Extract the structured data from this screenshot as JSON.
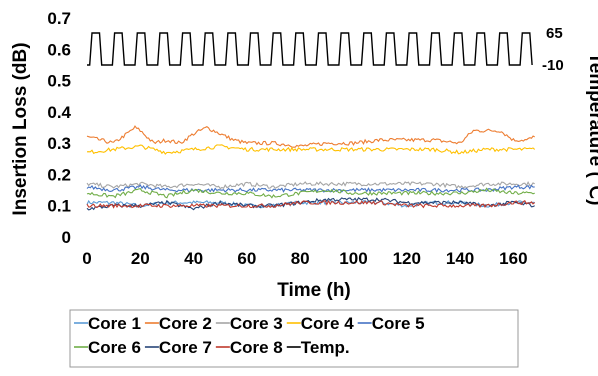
{
  "chart_data": {
    "type": "line",
    "title": "",
    "xlabel": "Time (h)",
    "ylabel": "Insertion Loss (dB)",
    "y2label": "Temperature (℃)",
    "xlim": [
      0,
      170
    ],
    "ylim": [
      0,
      0.7
    ],
    "xticks": [
      "0",
      "20",
      "40",
      "60",
      "80",
      "100",
      "120",
      "140",
      "160"
    ],
    "yticks": [
      "0",
      "0.1",
      "0.2",
      "0.3",
      "0.4",
      "0.5",
      "0.6",
      "0.7"
    ],
    "y2ticks": [
      "65",
      "-10"
    ],
    "grid": false,
    "legend_position": "bottom",
    "series": [
      {
        "name": "Core 1",
        "color": "#5b9bd5",
        "x": [
          0,
          10,
          20,
          30,
          40,
          50,
          60,
          70,
          80,
          90,
          100,
          110,
          120,
          130,
          140,
          150,
          160,
          168
        ],
        "values": [
          0.11,
          0.11,
          0.1,
          0.11,
          0.11,
          0.11,
          0.1,
          0.1,
          0.11,
          0.11,
          0.11,
          0.11,
          0.1,
          0.11,
          0.11,
          0.1,
          0.11,
          0.11
        ]
      },
      {
        "name": "Core 2",
        "color": "#ed7d31",
        "x": [
          0,
          5,
          10,
          15,
          18,
          20,
          25,
          30,
          35,
          40,
          45,
          50,
          55,
          60,
          70,
          80,
          90,
          100,
          110,
          120,
          130,
          140,
          145,
          150,
          155,
          160,
          165,
          168
        ],
        "values": [
          0.32,
          0.31,
          0.3,
          0.33,
          0.35,
          0.34,
          0.3,
          0.31,
          0.3,
          0.33,
          0.35,
          0.33,
          0.31,
          0.3,
          0.3,
          0.29,
          0.3,
          0.3,
          0.31,
          0.31,
          0.31,
          0.3,
          0.34,
          0.34,
          0.34,
          0.31,
          0.31,
          0.32
        ]
      },
      {
        "name": "Core 3",
        "color": "#a5a5a5",
        "x": [
          0,
          10,
          20,
          30,
          40,
          50,
          60,
          70,
          80,
          90,
          100,
          110,
          120,
          130,
          140,
          150,
          160,
          168
        ],
        "values": [
          0.17,
          0.16,
          0.17,
          0.16,
          0.17,
          0.16,
          0.17,
          0.16,
          0.17,
          0.17,
          0.17,
          0.17,
          0.17,
          0.17,
          0.16,
          0.17,
          0.17,
          0.17
        ]
      },
      {
        "name": "Core 4",
        "color": "#ffc000",
        "x": [
          0,
          10,
          20,
          30,
          40,
          50,
          60,
          70,
          80,
          90,
          100,
          110,
          120,
          130,
          140,
          150,
          160,
          168
        ],
        "values": [
          0.27,
          0.28,
          0.29,
          0.27,
          0.28,
          0.29,
          0.28,
          0.28,
          0.28,
          0.28,
          0.28,
          0.28,
          0.28,
          0.28,
          0.27,
          0.28,
          0.28,
          0.28
        ]
      },
      {
        "name": "Core 5",
        "color": "#4472c4",
        "x": [
          0,
          10,
          20,
          30,
          40,
          50,
          60,
          70,
          80,
          90,
          100,
          110,
          120,
          130,
          140,
          150,
          160,
          168
        ],
        "values": [
          0.16,
          0.15,
          0.16,
          0.15,
          0.15,
          0.15,
          0.15,
          0.15,
          0.15,
          0.15,
          0.15,
          0.15,
          0.15,
          0.15,
          0.15,
          0.15,
          0.16,
          0.16
        ]
      },
      {
        "name": "Core 6",
        "color": "#70ad47",
        "x": [
          0,
          10,
          20,
          30,
          40,
          50,
          60,
          70,
          80,
          90,
          100,
          110,
          120,
          130,
          140,
          150,
          160,
          168
        ],
        "values": [
          0.14,
          0.13,
          0.15,
          0.13,
          0.15,
          0.14,
          0.14,
          0.13,
          0.14,
          0.15,
          0.14,
          0.14,
          0.14,
          0.14,
          0.14,
          0.15,
          0.14,
          0.14
        ]
      },
      {
        "name": "Core 7",
        "color": "#264478",
        "x": [
          0,
          10,
          20,
          30,
          40,
          50,
          60,
          70,
          80,
          90,
          100,
          110,
          120,
          130,
          140,
          150,
          160,
          168
        ],
        "values": [
          0.09,
          0.1,
          0.1,
          0.11,
          0.09,
          0.11,
          0.1,
          0.1,
          0.11,
          0.12,
          0.12,
          0.12,
          0.11,
          0.11,
          0.11,
          0.1,
          0.11,
          0.1
        ]
      },
      {
        "name": "Core 8",
        "color": "#c0392b",
        "x": [
          0,
          10,
          20,
          30,
          40,
          50,
          60,
          70,
          80,
          90,
          100,
          110,
          120,
          130,
          140,
          150,
          160,
          168
        ],
        "values": [
          0.1,
          0.1,
          0.1,
          0.1,
          0.1,
          0.1,
          0.1,
          0.1,
          0.11,
          0.11,
          0.11,
          0.11,
          0.1,
          0.1,
          0.1,
          0.1,
          0.11,
          0.11
        ]
      },
      {
        "name": "Temp.",
        "color": "#000000",
        "axis": "right",
        "shape": "square-wave",
        "period_h": 8.5,
        "high": 65,
        "low": -10,
        "start_h": 0,
        "end_h": 168
      }
    ]
  }
}
